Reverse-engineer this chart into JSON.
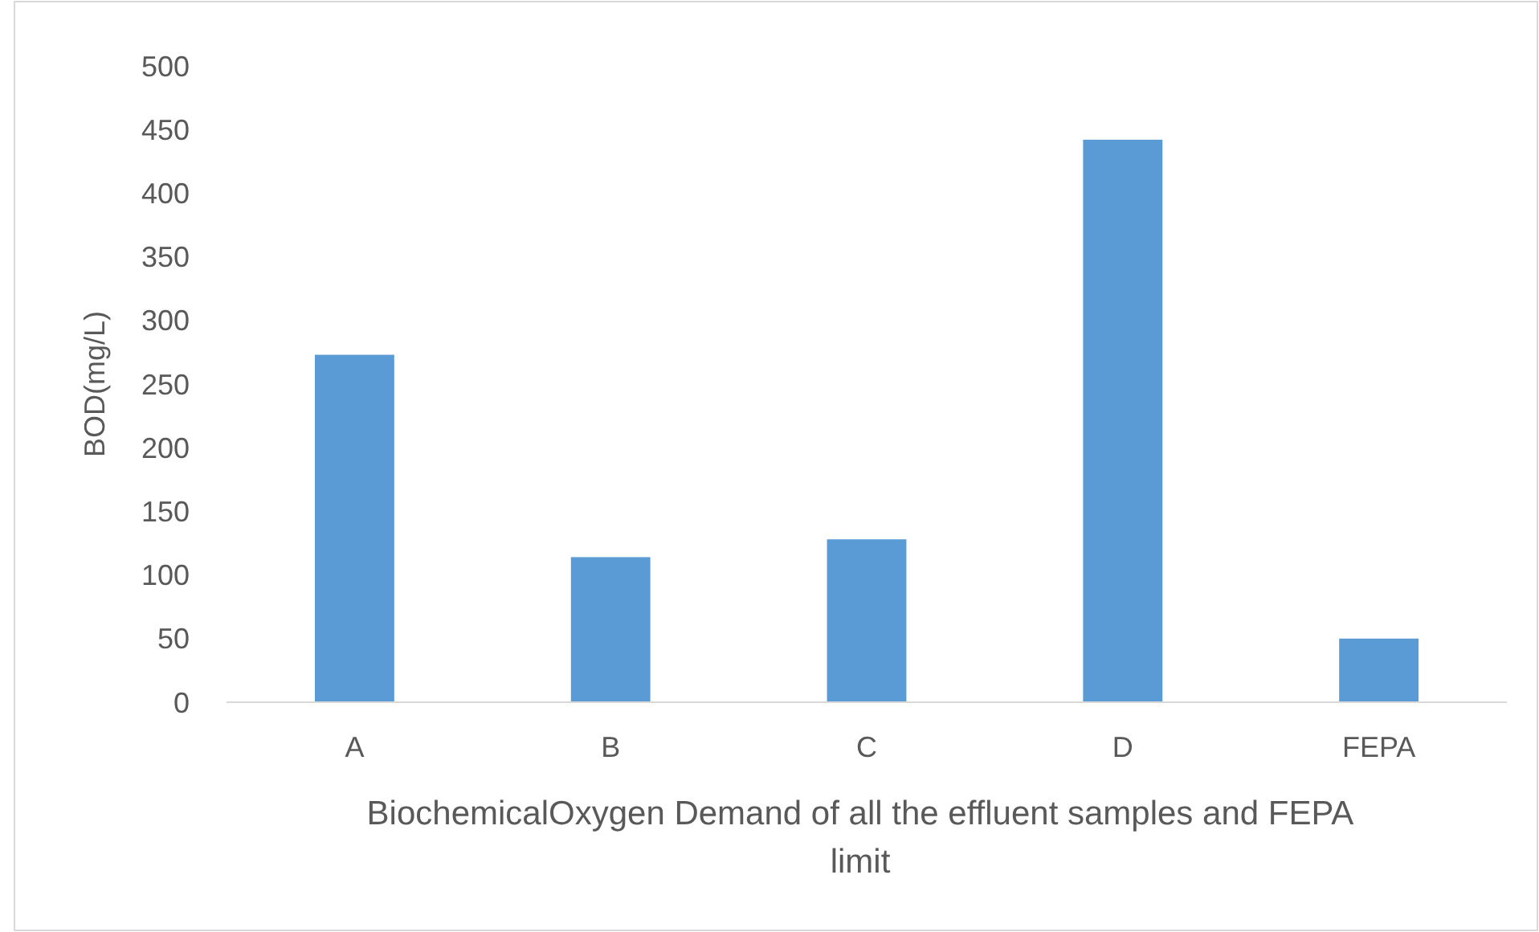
{
  "chart_data": {
    "type": "bar",
    "xlabel": "BiochemicalOxygen Demand of all the effluent samples and FEPA limit",
    "ylabel": "BOD(mg/L)",
    "categories": [
      "A",
      "B",
      "C",
      "D",
      "FEPA"
    ],
    "values": [
      273,
      114,
      128,
      442,
      50
    ],
    "color": "#5b9bd5",
    "ylim": [
      0,
      500
    ],
    "yticks": [
      0,
      50,
      100,
      150,
      200,
      250,
      300,
      350,
      400,
      450,
      500
    ],
    "grid": false
  }
}
